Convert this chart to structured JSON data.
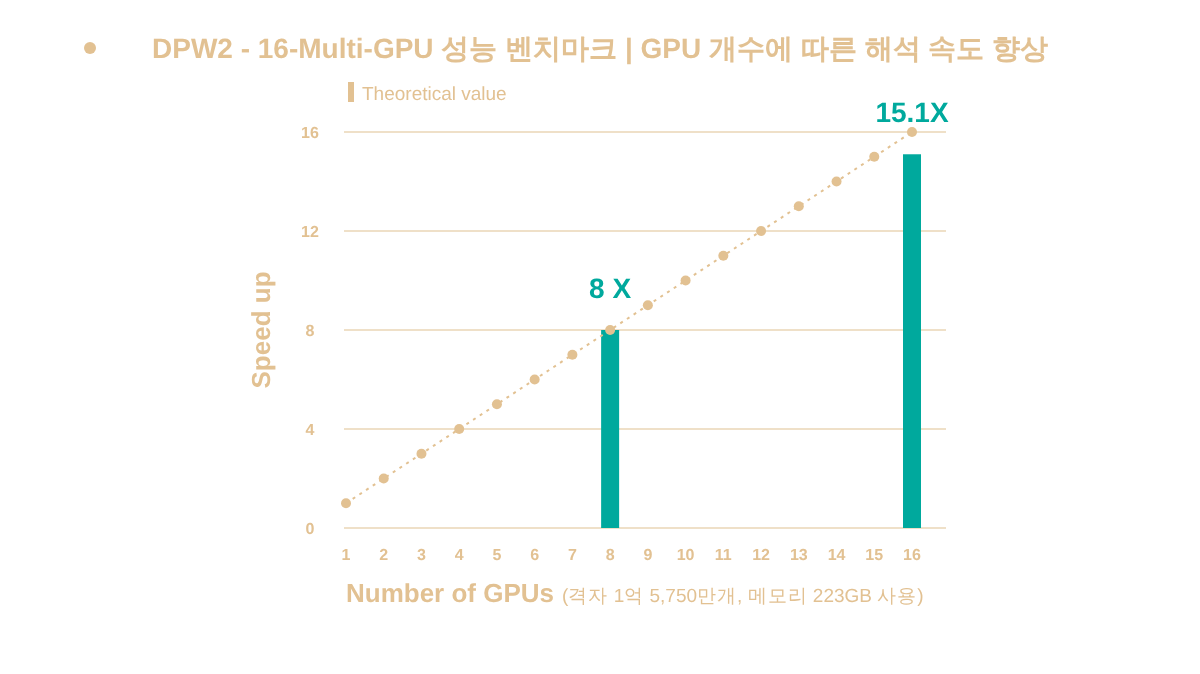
{
  "chart_data": {
    "type": "bar",
    "title": "DPW2 - 16-Multi-GPU 성능 벤치마크 | GPU 개수에 따른 해석 속도 향상",
    "xlabel": "Number of GPUs",
    "ylabel": "Speed up",
    "annotations": [
      "(격자 1억 5,750만개, 메모리 223GB 사용)"
    ],
    "categories": [
      "1",
      "2",
      "3",
      "4",
      "5",
      "6",
      "7",
      "8",
      "9",
      "10",
      "11",
      "12",
      "13",
      "14",
      "15",
      "16"
    ],
    "series": [
      {
        "color": "#00a99d",
        "values": [
          null,
          null,
          null,
          null,
          null,
          null,
          null,
          8,
          null,
          null,
          null,
          null,
          null,
          null,
          null,
          15.1
        ],
        "value_labels": [
          null,
          null,
          null,
          null,
          null,
          null,
          null,
          "8 X",
          null,
          null,
          null,
          null,
          null,
          null,
          null,
          "15.1X"
        ]
      },
      {
        "type": "line",
        "name": "Theoretical value",
        "color": "#e2c192",
        "values": [
          1,
          2,
          3,
          4,
          5,
          6,
          7,
          8,
          9,
          10,
          11,
          12,
          13,
          14,
          15,
          16
        ],
        "marker": "circle",
        "line_style": "dotted"
      }
    ],
    "ylim": [
      0,
      16
    ],
    "yticks": [
      0,
      4,
      8,
      12,
      16
    ],
    "grid": "y",
    "legend": "top left"
  }
}
